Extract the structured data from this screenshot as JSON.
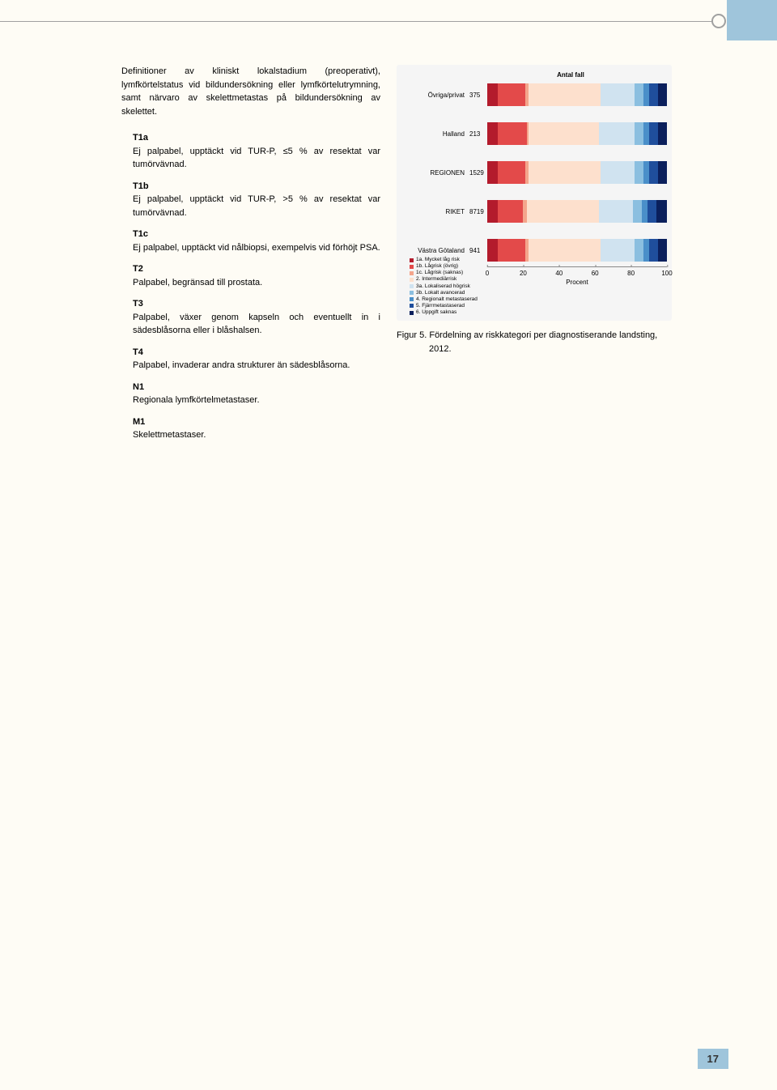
{
  "header": {},
  "intro_text": "Definitioner av kliniskt lokalstadium (preoperativt), lymfkörtelstatus vid bildundersökning eller lymfkörtelutrymning, samt närvaro av skelettmetastas på bildundersökning av skelettet.",
  "definitions": [
    {
      "code": "T1a",
      "text": "Ej palpabel, upptäckt vid TUR-P, ≤5 % av resektat var tumörvävnad."
    },
    {
      "code": "T1b",
      "text": "Ej palpabel, upptäckt vid TUR-P, >5 % av resektat var tumörvävnad."
    },
    {
      "code": "T1c",
      "text": "Ej palpabel, upptäckt vid nålbiopsi, exempelvis vid förhöjt PSA."
    },
    {
      "code": "T2",
      "text": "Palpabel, begränsad till prostata."
    },
    {
      "code": "T3",
      "text": "Palpabel, växer genom kapseln och eventuellt in i sädesblåsorna eller i blåshalsen."
    },
    {
      "code": "T4",
      "text": "Palpabel, invaderar andra strukturer än sädesblåsorna."
    },
    {
      "code": "N1",
      "text": "Regionala lymfkörtelmetastaser."
    },
    {
      "code": "M1",
      "text": "Skelettmetastaser."
    }
  ],
  "chart": {
    "type": "stacked-bar-horizontal",
    "count_header": "Antal fall",
    "xlabel": "Procent",
    "xlim": [
      0,
      100
    ],
    "xticks": [
      0,
      20,
      40,
      60,
      80,
      100
    ],
    "background": "#f5f5f5",
    "categories": [
      {
        "label": "Övriga/privat",
        "n": "375",
        "pct": [
          6,
          15,
          2,
          40,
          19,
          5,
          3,
          5,
          5
        ]
      },
      {
        "label": "Halland",
        "n": "213",
        "pct": [
          6,
          16,
          1,
          39,
          20,
          5,
          3,
          5,
          5
        ]
      },
      {
        "label": "REGIONEN",
        "n": "1529",
        "pct": [
          6,
          15,
          2,
          40,
          19,
          5,
          3,
          5,
          5
        ]
      },
      {
        "label": "RIKET",
        "n": "8719",
        "pct": [
          6,
          14,
          2,
          40,
          19,
          5,
          3,
          5,
          6
        ]
      },
      {
        "label": "Västra Götaland",
        "n": "941",
        "pct": [
          6,
          15,
          2,
          40,
          19,
          5,
          3,
          5,
          5
        ]
      }
    ],
    "series": [
      {
        "name": "1a. Mycket låg risk",
        "color": "#b31b2c"
      },
      {
        "name": "1b. Lågrisk (övrig)",
        "color": "#e34a4a"
      },
      {
        "name": "1c. Lågrisk (saknas)",
        "color": "#f4a58c"
      },
      {
        "name": "2. Intermediärrisk",
        "color": "#fde0cd"
      },
      {
        "name": "3a. Lokaliserad högrisk",
        "color": "#d0e3f0"
      },
      {
        "name": "3b. Lokalt avancerad",
        "color": "#8bbfe0"
      },
      {
        "name": "4. Regionalt metastaserad",
        "color": "#4a8fc9"
      },
      {
        "name": "5. Fjärrmetastaserad",
        "color": "#1f4e9c"
      },
      {
        "name": "6. Uppgift saknas",
        "color": "#0a1f5c"
      }
    ]
  },
  "caption": "Figur 5. Fördelning av riskkategori per diagnostiserande landsting, 2012.",
  "page_number": "17"
}
